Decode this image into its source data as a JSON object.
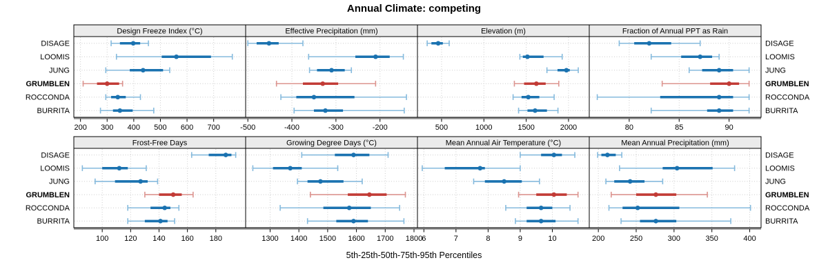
{
  "chart_data": {
    "type": "interval-dotplot-trellis",
    "title": "Annual Climate: competing",
    "xlabel": "5th-25th-50th-75th-95th Percentiles",
    "legend_position": "none",
    "grid": "dotted",
    "sites": [
      "DISAGE",
      "LOOMIS",
      "JUNG",
      "GRUMBLEN",
      "ROCCONDA",
      "BURRITA"
    ],
    "highlight_site": "GRUMBLEN",
    "percentiles": [
      5,
      25,
      50,
      75,
      95
    ],
    "panels": [
      {
        "title": "Design Freeze Index (°C)",
        "row": 0,
        "col": 0,
        "xlim": [
          175,
          820
        ],
        "ticks": [
          200,
          300,
          400,
          500,
          600,
          700
        ],
        "values": {
          "DISAGE": [
            315,
            348,
            398,
            424,
            455
          ],
          "LOOMIS": [
            335,
            505,
            560,
            690,
            770
          ],
          "JUNG": [
            295,
            385,
            435,
            510,
            535
          ],
          "GRUMBLEN": [
            210,
            262,
            300,
            345,
            358
          ],
          "ROCCONDA": [
            295,
            315,
            340,
            370,
            425
          ],
          "BURRITA": [
            275,
            322,
            348,
            396,
            475
          ]
        }
      },
      {
        "title": "Effective Precipitation (mm)",
        "row": 0,
        "col": 1,
        "xlim": [
          -505,
          -115
        ],
        "ticks": [
          -500,
          -400,
          -300,
          -200
        ],
        "values": {
          "DISAGE": [
            -500,
            -480,
            -452,
            -430,
            -375
          ],
          "LOOMIS": [
            -362,
            -256,
            -210,
            -178,
            -147
          ],
          "JUNG": [
            -360,
            -343,
            -310,
            -280,
            -265
          ],
          "GRUMBLEN": [
            -435,
            -375,
            -330,
            -295,
            -210
          ],
          "ROCCONDA": [
            -425,
            -390,
            -350,
            -258,
            -140
          ],
          "BURRITA": [
            -395,
            -350,
            -324,
            -284,
            -145
          ]
        }
      },
      {
        "title": "Elevation (m)",
        "row": 0,
        "col": 2,
        "xlim": [
          215,
          2245
        ],
        "ticks": [
          500,
          1000,
          1500,
          2000
        ],
        "values": {
          "DISAGE": [
            330,
            380,
            460,
            515,
            590
          ],
          "LOOMIS": [
            1425,
            1460,
            1515,
            1705,
            1925
          ],
          "JUNG": [
            1745,
            1870,
            1975,
            2015,
            2115
          ],
          "GRUMBLEN": [
            1360,
            1475,
            1620,
            1730,
            1885
          ],
          "ROCCONDA": [
            1345,
            1445,
            1525,
            1655,
            1830
          ],
          "BURRITA": [
            1410,
            1515,
            1605,
            1745,
            1875
          ]
        }
      },
      {
        "title": "Fraction of Annual PPT as Rain",
        "row": 0,
        "col": 3,
        "xlim": [
          76,
          93.2
        ],
        "ticks": [
          80,
          85,
          90
        ],
        "values": {
          "DISAGE": [
            79,
            80.5,
            82,
            84.2,
            87.1
          ],
          "LOOMIS": [
            82.2,
            85.2,
            87.1,
            88.3,
            89
          ],
          "JUNG": [
            86,
            87.3,
            89,
            90.4,
            92
          ],
          "GRUMBLEN": [
            83.3,
            88.1,
            90,
            91,
            92
          ],
          "ROCCONDA": [
            76.8,
            83.1,
            89,
            90.4,
            92
          ],
          "BURRITA": [
            82.2,
            87.8,
            89,
            90.4,
            92
          ]
        }
      },
      {
        "title": "Frost-Free Days",
        "row": 1,
        "col": 0,
        "xlim": [
          80,
          201
        ],
        "ticks": [
          100,
          120,
          140,
          160,
          180
        ],
        "values": {
          "DISAGE": [
            163,
            175,
            187,
            191,
            194
          ],
          "LOOMIS": [
            86,
            100,
            112,
            118,
            131
          ],
          "JUNG": [
            95,
            109,
            127,
            132,
            139
          ],
          "GRUMBLEN": [
            130,
            140,
            150,
            156,
            164
          ],
          "ROCCONDA": [
            118,
            134,
            144,
            148,
            154
          ],
          "BURRITA": [
            118,
            130,
            141,
            146,
            151
          ]
        }
      },
      {
        "title": "Growing Degree Days (°C)",
        "row": 1,
        "col": 1,
        "xlim": [
          1215,
          1812
        ],
        "ticks": [
          1300,
          1400,
          1500,
          1600,
          1700,
          1800
        ],
        "values": {
          "DISAGE": [
            1410,
            1525,
            1590,
            1645,
            1710
          ],
          "LOOMIS": [
            1240,
            1310,
            1370,
            1410,
            1535
          ],
          "JUNG": [
            1395,
            1430,
            1475,
            1555,
            1620
          ],
          "GRUMBLEN": [
            1440,
            1570,
            1645,
            1705,
            1770
          ],
          "ROCCONDA": [
            1335,
            1485,
            1575,
            1650,
            1750
          ],
          "BURRITA": [
            1430,
            1530,
            1590,
            1640,
            1765
          ]
        }
      },
      {
        "title": "Mean Annual Air Temperature (°C)",
        "row": 1,
        "col": 2,
        "xlim": [
          5.8,
          11.15
        ],
        "ticks": [
          6,
          7,
          8,
          9,
          10
        ],
        "values": {
          "DISAGE": [
            9.0,
            9.65,
            10.05,
            10.3,
            10.7
          ],
          "LOOMIS": [
            5.95,
            6.65,
            7.75,
            7.9,
            9.0
          ],
          "JUNG": [
            7.55,
            7.9,
            8.5,
            9.05,
            9.6
          ],
          "GRUMBLEN": [
            8.95,
            9.5,
            10.05,
            10.45,
            10.8
          ],
          "ROCCONDA": [
            8.55,
            9.2,
            9.65,
            10.0,
            10.55
          ],
          "BURRITA": [
            8.85,
            9.2,
            9.65,
            10.1,
            10.8
          ]
        }
      },
      {
        "title": "Mean Annual Precipitation (mm)",
        "row": 1,
        "col": 3,
        "xlim": [
          188,
          415
        ],
        "ticks": [
          200,
          250,
          300,
          350,
          400
        ],
        "values": {
          "DISAGE": [
            199,
            204,
            212,
            223,
            231
          ],
          "LOOMIS": [
            228,
            285,
            304,
            351,
            380
          ],
          "JUNG": [
            210,
            221,
            242,
            261,
            285
          ],
          "GRUMBLEN": [
            217,
            250,
            276,
            303,
            344
          ],
          "ROCCONDA": [
            214,
            232,
            252,
            307,
            401
          ],
          "BURRITA": [
            230,
            255,
            276,
            303,
            375
          ]
        }
      }
    ],
    "colors": {
      "normal": "#1a72b0",
      "normal_light": "#85badd",
      "highlight": "#c23b36",
      "highlight_light": "#dc948f",
      "header_bg": "#ebebeb",
      "panel_border": "#000000",
      "grid": "#cccccc",
      "axis_shadow": "#8f8f8f",
      "text": "#000000"
    }
  }
}
